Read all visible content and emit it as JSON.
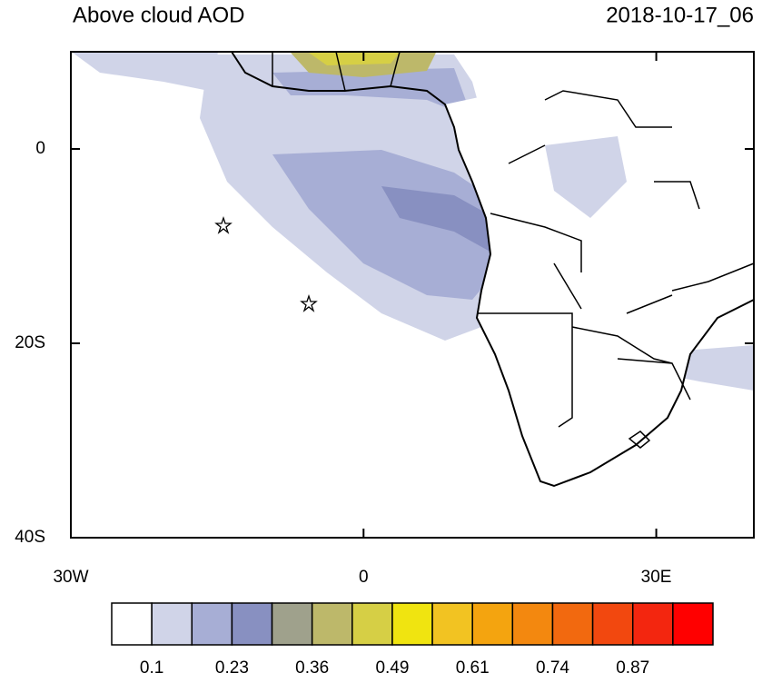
{
  "map": {
    "title": "Above cloud AOD",
    "date": "2018-10-17_06",
    "lonlim": [
      -30,
      40
    ],
    "latlim": [
      -40,
      10
    ],
    "lonticks": [
      {
        "value": -30,
        "label": "30W"
      },
      0,
      {
        "value": 30,
        "label": "30E"
      }
    ],
    "latticks": [
      0,
      {
        "value": -20,
        "label": "20S"
      },
      {
        "value": -40,
        "label": "40S"
      }
    ],
    "colorbar": {
      "colors": [
        "#ffffff",
        "#d0d4e8",
        "#a7aed5",
        "#8890c1",
        "#9fa18c",
        "#bdb86a",
        "#d6cf45",
        "#f0e410",
        "#f2c322",
        "#f4a40f",
        "#f3880f",
        "#f2690f",
        "#f2480f",
        "#f3260f",
        "#ff0000"
      ],
      "labels": [
        0.1,
        0.23,
        0.36,
        0.49,
        0.61,
        0.74,
        0.87
      ]
    }
  }
}
